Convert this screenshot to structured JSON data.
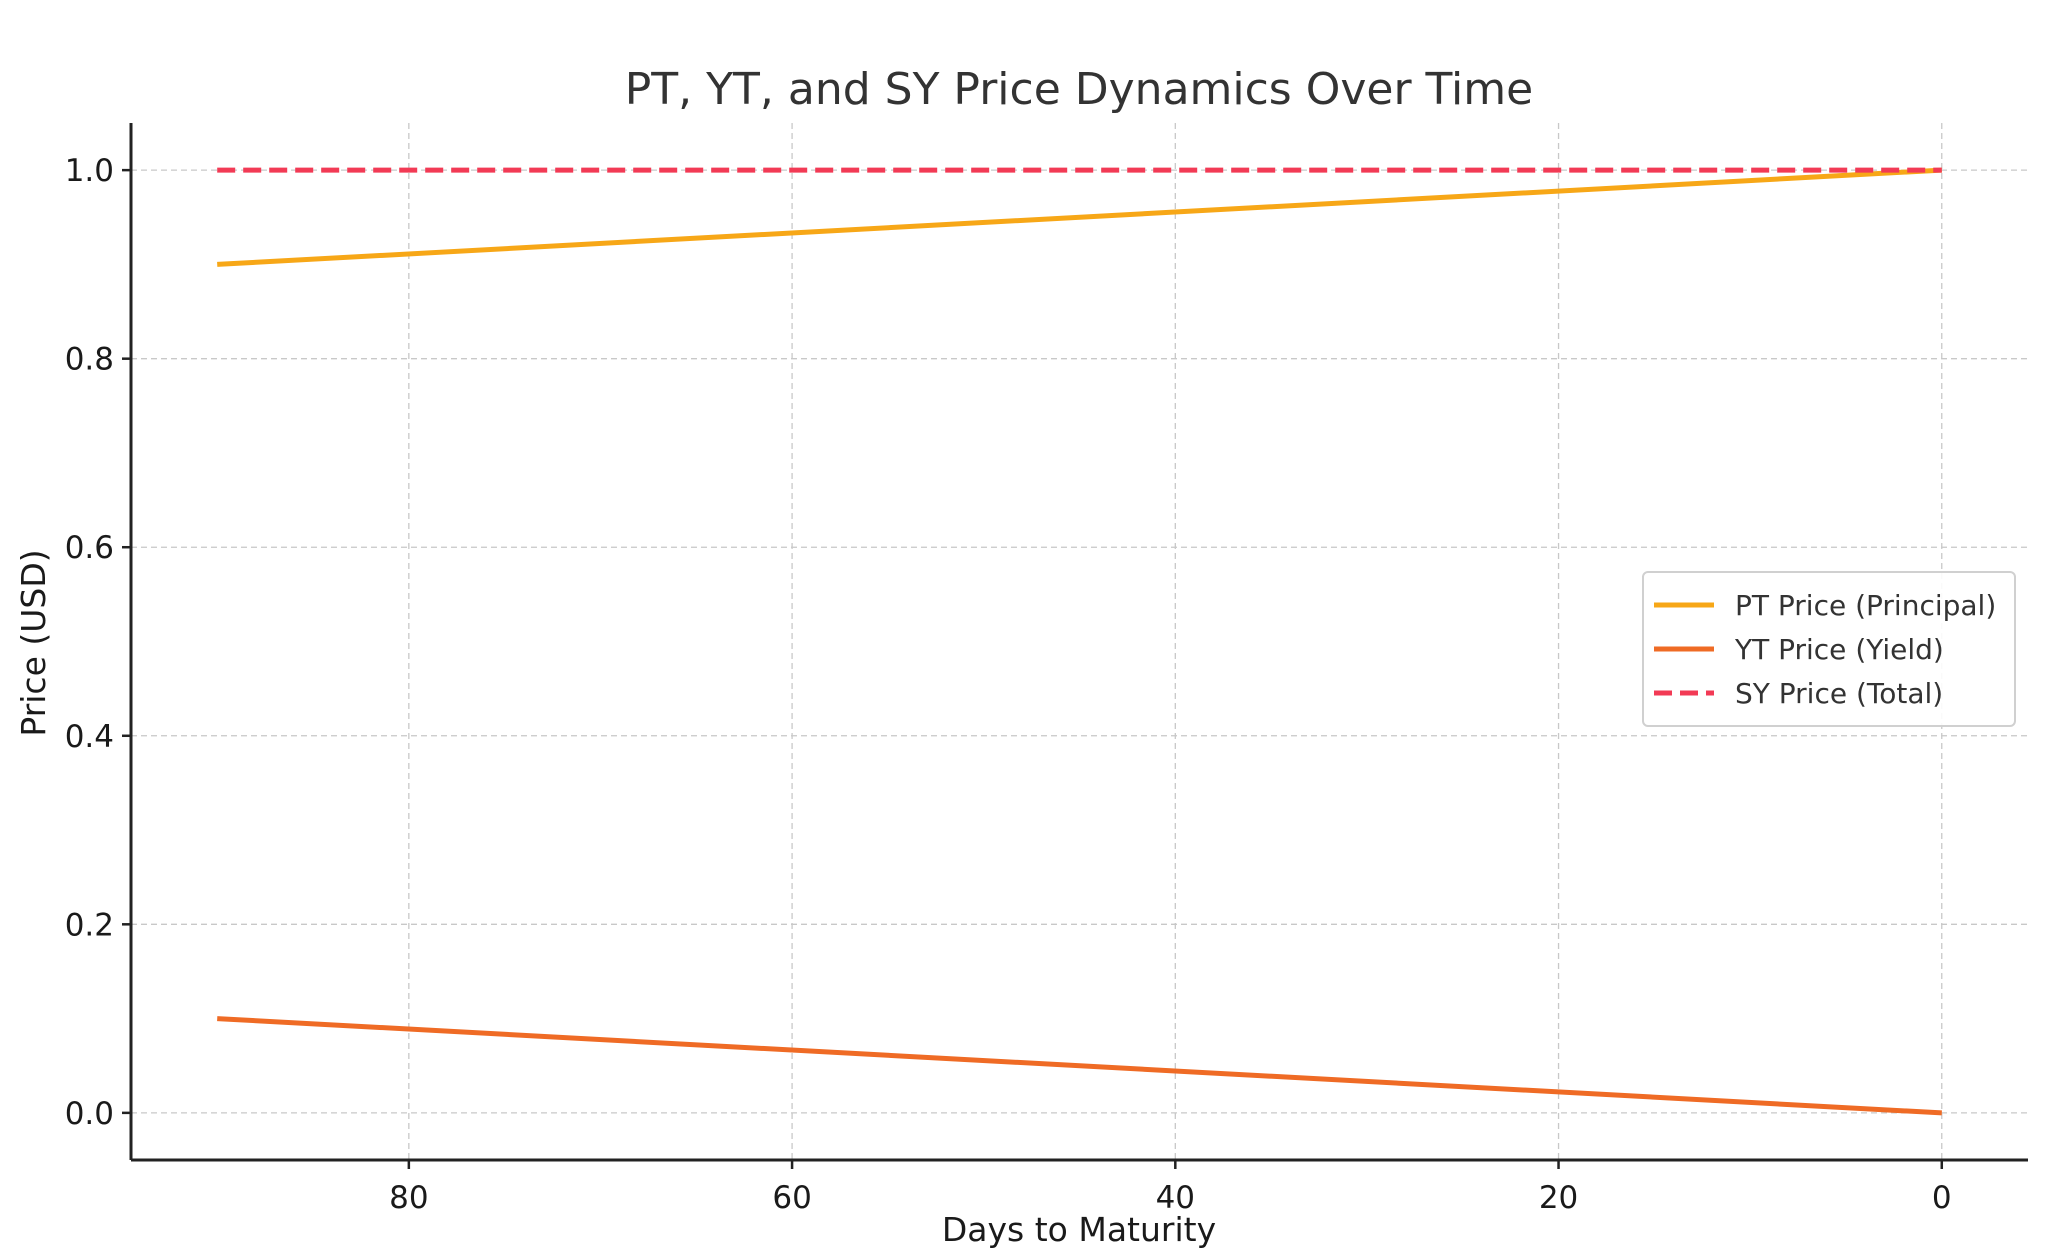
{
  "chart_data": {
    "type": "line",
    "title": "PT, YT, and SY Price Dynamics Over Time",
    "xlabel": "Days to Maturity",
    "ylabel": "Price (USD)",
    "x_inverted": true,
    "xlim": [
      94.5,
      -4.5
    ],
    "ylim": [
      -0.05,
      1.05
    ],
    "xticks": [
      80,
      60,
      40,
      20,
      0
    ],
    "xtick_labels": [
      "80",
      "60",
      "40",
      "20",
      "0"
    ],
    "yticks": [
      0.0,
      0.2,
      0.4,
      0.6,
      0.8,
      1.0
    ],
    "ytick_labels": [
      "0.0",
      "0.2",
      "0.4",
      "0.6",
      "0.8",
      "1.0"
    ],
    "grid": true,
    "legend_position": "center-right",
    "series": [
      {
        "name": "PT Price (Principal)",
        "color": "#f7a717",
        "style": "solid",
        "x": [
          90,
          0
        ],
        "y": [
          0.9,
          1.0
        ]
      },
      {
        "name": "YT Price (Yield)",
        "color": "#ef6b25",
        "style": "solid",
        "x": [
          90,
          0
        ],
        "y": [
          0.1,
          0.0
        ]
      },
      {
        "name": "SY Price (Total)",
        "color": "#f23a55",
        "style": "dashed",
        "x": [
          90,
          0
        ],
        "y": [
          1.0,
          1.0
        ]
      }
    ]
  }
}
